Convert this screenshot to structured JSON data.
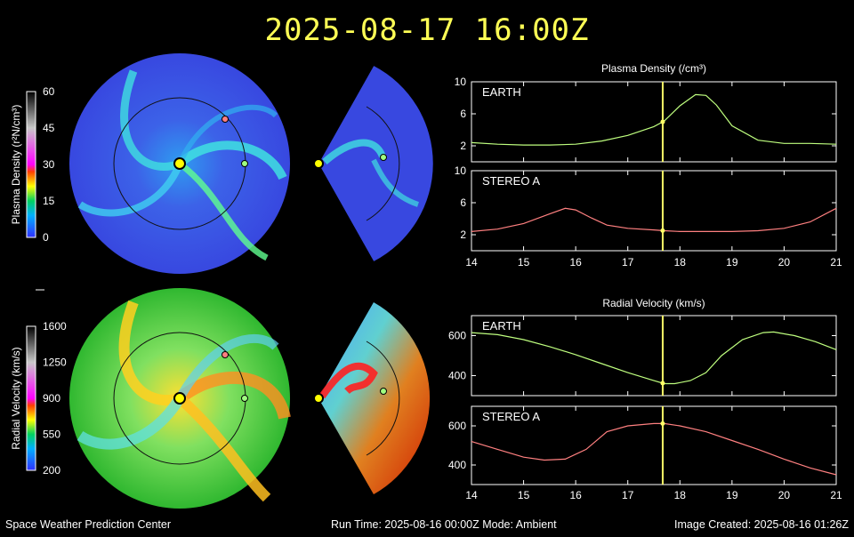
{
  "header": {
    "title": "2025-08-17 16:00Z"
  },
  "footer": {
    "left": "Space Weather Prediction Center",
    "center": "Run Time: 2025-08-16 00:00Z  Mode: Ambient",
    "right": "Image Created: 2025-08-16 01:26Z"
  },
  "colors": {
    "title": "#ffff55",
    "earth": "#bfff7f",
    "stereo_a": "#ff8080",
    "cursor": "#ffff66",
    "disk_bg": "#3848e0"
  },
  "colorbars": [
    {
      "label": "Plasma Density (r²N/cm³)",
      "ticks": [
        "60",
        "45",
        "30",
        "15",
        "0"
      ]
    },
    {
      "label": "Radial Velocity (km/s)",
      "ticks": [
        "1600",
        "1250",
        "900",
        "550",
        "200"
      ]
    }
  ],
  "sun_icon": "sun-marker",
  "chart_data": [
    {
      "type": "line",
      "title": "Plasma Density (/cm³)",
      "panels": [
        {
          "label": "EARTH",
          "ylim": [
            0,
            10
          ],
          "yticks": [
            "10",
            "6",
            "2"
          ],
          "series": [
            {
              "x": [
                14,
                14.5,
                15,
                15.5,
                16,
                16.5,
                17,
                17.5,
                17.7,
                18,
                18.3,
                18.5,
                18.7,
                19,
                19.5,
                20,
                20.5,
                21
              ],
              "y": [
                2.4,
                2.2,
                2.1,
                2.1,
                2.2,
                2.6,
                3.3,
                4.4,
                5.1,
                7.0,
                8.4,
                8.3,
                7.1,
                4.5,
                2.7,
                2.3,
                2.3,
                2.2
              ]
            }
          ]
        },
        {
          "label": "STEREO A",
          "ylim": [
            0,
            10
          ],
          "yticks": [
            "10",
            "6",
            "2"
          ],
          "series": [
            {
              "x": [
                14,
                14.5,
                15,
                15.5,
                15.8,
                16,
                16.3,
                16.6,
                17,
                17.5,
                17.7,
                18,
                18.5,
                19,
                19.5,
                20,
                20.5,
                21
              ],
              "y": [
                2.4,
                2.7,
                3.4,
                4.6,
                5.3,
                5.1,
                4.1,
                3.2,
                2.8,
                2.6,
                2.5,
                2.4,
                2.4,
                2.4,
                2.5,
                2.8,
                3.6,
                5.3
              ]
            }
          ]
        }
      ],
      "xticks": [
        "14",
        "15",
        "16",
        "17",
        "18",
        "19",
        "20",
        "21"
      ],
      "xlim": [
        14,
        21
      ],
      "cursor_x": 17.67
    },
    {
      "type": "line",
      "title": "Radial Velocity (km/s)",
      "panels": [
        {
          "label": "EARTH",
          "ylim": [
            300,
            700
          ],
          "yticks": [
            "600",
            "400"
          ],
          "series": [
            {
              "x": [
                14,
                14.5,
                15,
                15.5,
                16,
                16.5,
                17,
                17.5,
                17.7,
                17.9,
                18.2,
                18.5,
                18.8,
                19.2,
                19.6,
                19.8,
                20.2,
                20.6,
                21
              ],
              "y": [
                615,
                605,
                580,
                545,
                505,
                460,
                415,
                375,
                360,
                360,
                375,
                415,
                500,
                580,
                615,
                618,
                600,
                570,
                530
              ]
            }
          ]
        },
        {
          "label": "STEREO A",
          "ylim": [
            300,
            700
          ],
          "yticks": [
            "600",
            "400"
          ],
          "series": [
            {
              "x": [
                14,
                14.5,
                15,
                15.4,
                15.8,
                16.2,
                16.6,
                17,
                17.5,
                17.7,
                18,
                18.5,
                19,
                19.5,
                20,
                20.5,
                21
              ],
              "y": [
                520,
                480,
                440,
                425,
                430,
                480,
                570,
                600,
                612,
                612,
                600,
                570,
                525,
                480,
                430,
                385,
                350
              ]
            }
          ]
        }
      ],
      "xticks": [
        "14",
        "15",
        "16",
        "17",
        "18",
        "19",
        "20",
        "21"
      ],
      "xlim": [
        14,
        21
      ],
      "cursor_x": 17.67
    }
  ]
}
